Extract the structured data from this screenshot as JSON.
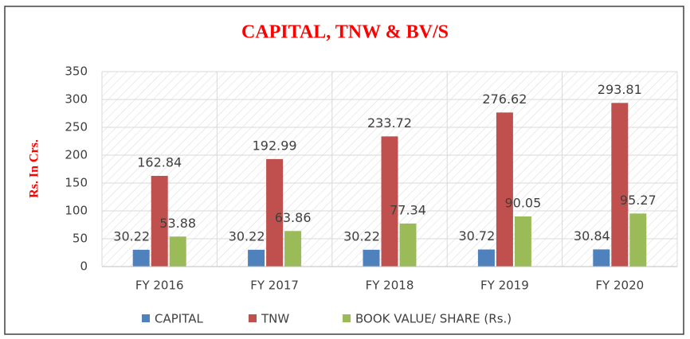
{
  "chart_data": {
    "type": "bar",
    "title": "CAPITAL,  TNW & BV/S",
    "y_label": "Rs. In Crs.",
    "categories": [
      "FY 2016",
      "FY 2017",
      "FY 2018",
      "FY 2019",
      "FY 2020"
    ],
    "series": [
      {
        "name": "CAPITAL",
        "color": "#4f81bd",
        "values": [
          30.22,
          30.22,
          30.22,
          30.72,
          30.84
        ]
      },
      {
        "name": "TNW",
        "color": "#c0504d",
        "values": [
          162.84,
          192.99,
          233.72,
          276.62,
          293.81
        ]
      },
      {
        "name": "BOOK VALUE/ SHARE (Rs.)",
        "color": "#9bbb59",
        "values": [
          53.88,
          63.86,
          77.34,
          90.05,
          95.27
        ]
      }
    ],
    "ylim": [
      0,
      350
    ],
    "yticks": [
      0,
      50,
      100,
      150,
      200,
      250,
      300,
      350
    ],
    "grid": true,
    "legend": "bottom"
  }
}
